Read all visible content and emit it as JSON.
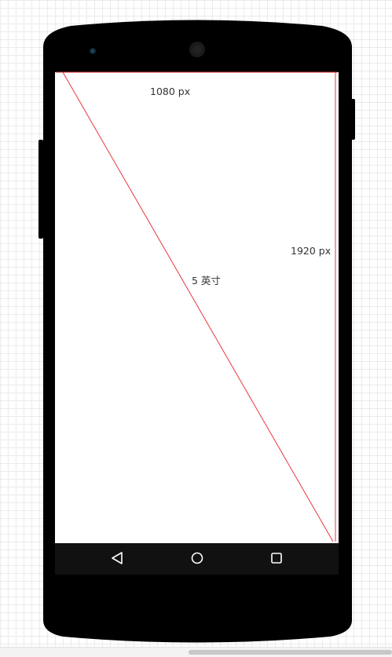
{
  "diagram": {
    "width_label": "1080 px",
    "height_label": "1920 px",
    "diagonal_label": "5 英寸",
    "line_color": "#e8373d",
    "device_color": "#000000",
    "nav_bar_color": "#111111"
  },
  "nav_bar": {
    "back_icon": "back-triangle-icon",
    "home_icon": "home-circle-icon",
    "recents_icon": "recents-square-icon"
  }
}
